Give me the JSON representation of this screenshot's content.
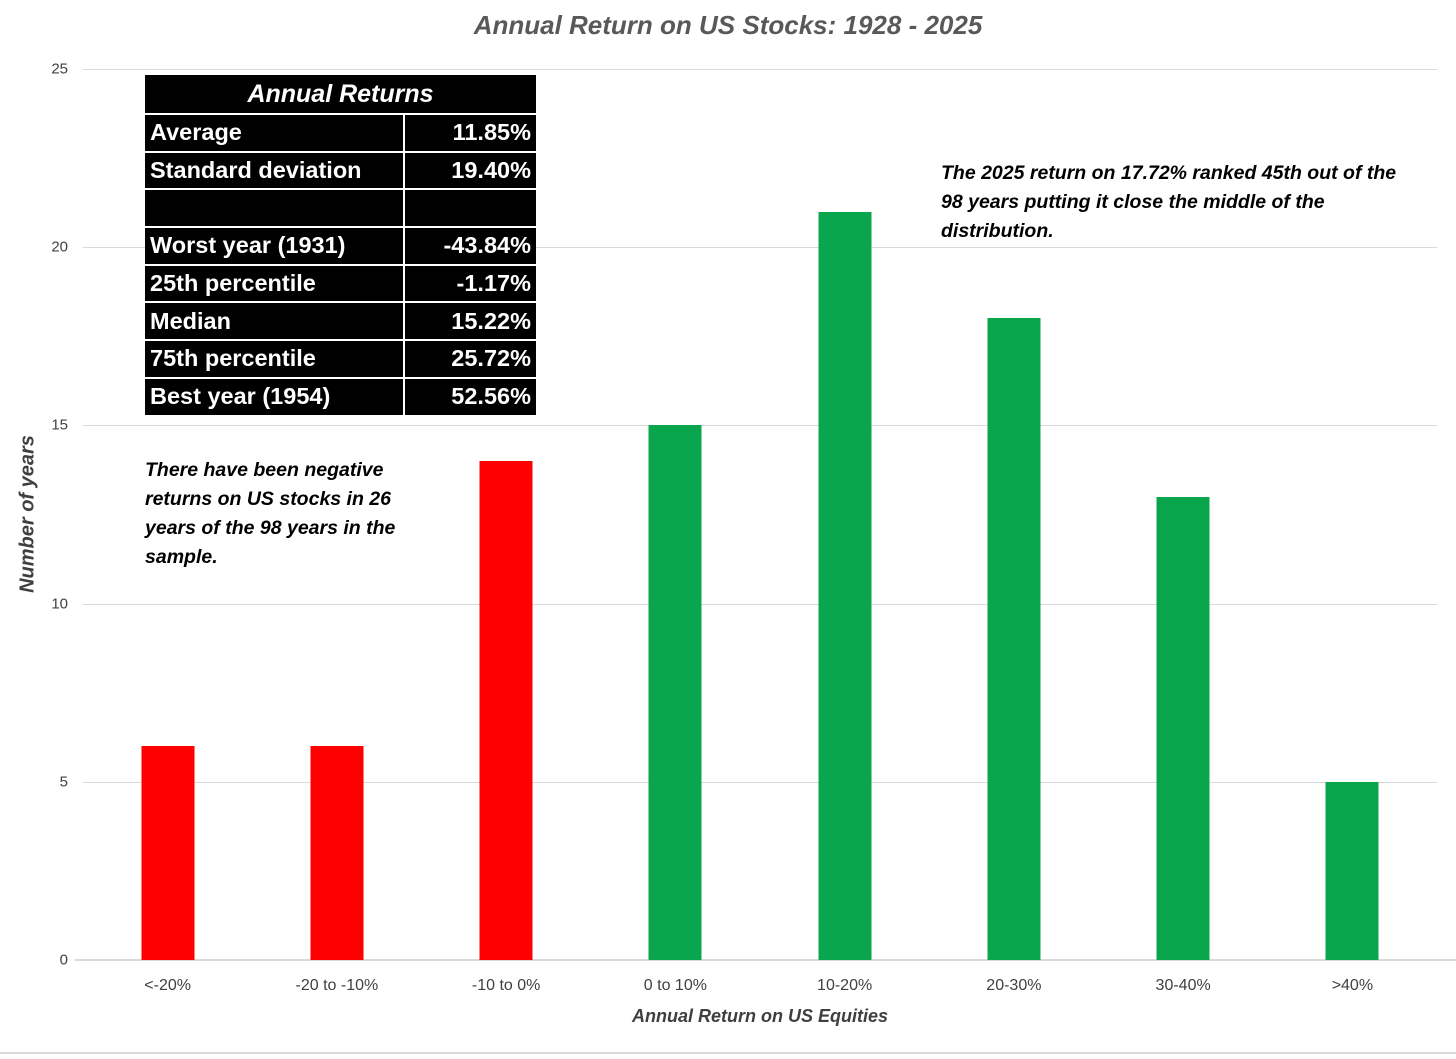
{
  "chart_data": {
    "type": "bar",
    "title": "Annual Return on US Stocks: 1928 - 2025",
    "xlabel": "Annual Return on US Equities",
    "ylabel": "Number of years",
    "categories": [
      "<-20%",
      "-20 to -10%",
      "-10 to 0%",
      "0 to 10%",
      "10-20%",
      "20-30%",
      "30-40%",
      ">40%"
    ],
    "values": [
      6,
      6,
      14,
      15,
      21,
      18,
      13,
      5
    ],
    "bar_colors": [
      "#fe0000",
      "#fe0000",
      "#fe0000",
      "#0aa64e",
      "#0aa64e",
      "#0aa64e",
      "#0aa64e",
      "#0aa64e"
    ],
    "ylim": [
      0,
      25
    ],
    "yticks": [
      0,
      5,
      10,
      15,
      20,
      25
    ],
    "grid": "horizontal",
    "legend": "none"
  },
  "stats_table": {
    "header": "Annual Returns",
    "rows": [
      {
        "label": "Average",
        "value": "11.85%"
      },
      {
        "label": "Standard deviation",
        "value": "19.40%"
      },
      {
        "label": "",
        "value": ""
      },
      {
        "label": "Worst year (1931)",
        "value": "-43.84%"
      },
      {
        "label": "25th percentile",
        "value": "-1.17%"
      },
      {
        "label": "Median",
        "value": "15.22%"
      },
      {
        "label": "75th percentile",
        "value": "25.72%"
      },
      {
        "label": "Best year (1954)",
        "value": "52.56%"
      }
    ]
  },
  "annotations": {
    "negative_years": "There have been negative returns on US stocks in 26 years of the 98 years in the sample.",
    "return_2025": "The 2025 return on 17.72% ranked 45th out of the 98 years putting it close the middle of the distribution."
  },
  "colors": {
    "negative_bar": "#fe0000",
    "positive_bar": "#0aa64e",
    "gridline": "#d9d9d9",
    "title_text": "#595959",
    "axis_text": "#404040",
    "table_bg": "#000000",
    "table_text": "#ffffff"
  }
}
